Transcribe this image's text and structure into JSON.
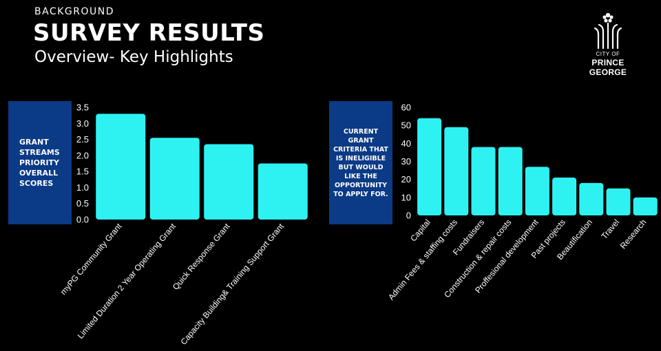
{
  "header": {
    "eyebrow": "BACKGROUND",
    "title": "SURVEY RESULTS",
    "subtitle": "Overview- Key Highlights"
  },
  "logo": {
    "line1": "CITY OF",
    "line2": "PRINCE GEORGE",
    "icon": "city-crest-icon"
  },
  "colors": {
    "background": "#000000",
    "bar": "#2ef2f2",
    "label_box": "#0b3a86",
    "text": "#ffffff"
  },
  "chart_data": [
    {
      "type": "bar",
      "label_box": "GRANT STREAMS PRIORITY OVERALL SCORES",
      "categories": [
        "myPG Community Grant",
        "Limited Duration 2 Year Operating Grant",
        "Quick Response Grant",
        "Capacity Building& Training Support Grant"
      ],
      "values": [
        3.3,
        2.55,
        2.35,
        1.75
      ],
      "ylim": [
        0,
        3.5
      ],
      "yticks": [
        "0.0",
        "0.5",
        "1.0",
        "1.5",
        "2.0",
        "2.5",
        "3.0",
        "3.5"
      ],
      "grid": false,
      "title": "",
      "xlabel": "",
      "ylabel": ""
    },
    {
      "type": "bar",
      "label_box": "CURRENT GRANT CRITERIA THAT IS INELIGIBLE BUT WOULD LIKE THE OPPORTUNITY TO APPLY FOR.",
      "categories": [
        "Capital",
        "Admin Fees & staffing costs",
        "Fundraisers",
        "Construction & repair costs",
        "Proffesional development",
        "Past projects",
        "Beautification",
        "Travel",
        "Research"
      ],
      "values": [
        54,
        49,
        38,
        38,
        27,
        21,
        18,
        15,
        10
      ],
      "ylim": [
        0,
        60
      ],
      "yticks": [
        "0",
        "10",
        "20",
        "30",
        "40",
        "50",
        "60"
      ],
      "grid": false,
      "title": "",
      "xlabel": "",
      "ylabel": ""
    }
  ]
}
